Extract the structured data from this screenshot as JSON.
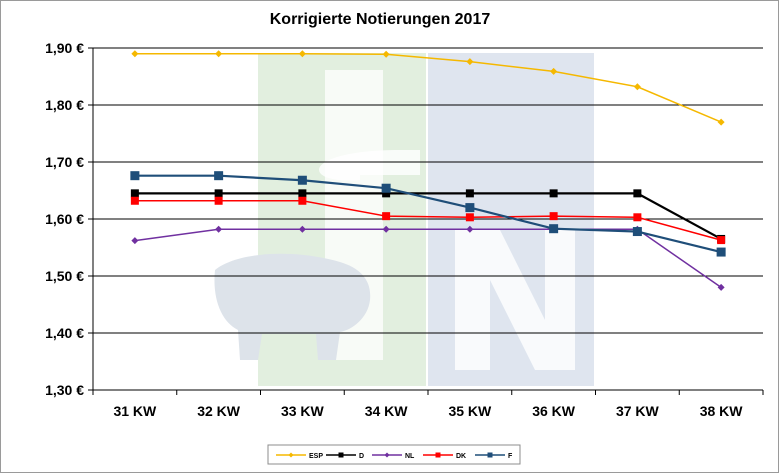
{
  "chart_data": {
    "type": "line",
    "title": "Korrigierte Notierungen 2017",
    "categories": [
      "31 KW",
      "32 KW",
      "33 KW",
      "34 KW",
      "35 KW",
      "36 KW",
      "37 KW",
      "38 KW"
    ],
    "ylim": [
      1.3,
      1.9
    ],
    "yticks": [
      1.3,
      1.4,
      1.5,
      1.6,
      1.7,
      1.8,
      1.9
    ],
    "ytick_labels": [
      "1,30 €",
      "1,40 €",
      "1,50 €",
      "1,60 €",
      "1,70 €",
      "1,80 €",
      "1,90 €"
    ],
    "grid": true,
    "legend_position": "bottom",
    "series": [
      {
        "name": "ESP",
        "color": "#f5b800",
        "marker": "diamond",
        "values": [
          1.89,
          1.89,
          1.89,
          1.889,
          1.876,
          1.859,
          1.832,
          1.77
        ]
      },
      {
        "name": "D",
        "color": "#000000",
        "marker": "square",
        "values": [
          1.645,
          1.645,
          1.645,
          1.645,
          1.645,
          1.645,
          1.645,
          1.565
        ]
      },
      {
        "name": "NL",
        "color": "#7030a0",
        "marker": "diamond",
        "values": [
          1.562,
          1.582,
          1.582,
          1.582,
          1.582,
          1.582,
          1.582,
          1.48
        ]
      },
      {
        "name": "DK",
        "color": "#ff0000",
        "marker": "square",
        "values": [
          1.632,
          1.632,
          1.632,
          1.605,
          1.603,
          1.605,
          1.603,
          1.563
        ]
      },
      {
        "name": "F",
        "color": "#1f4e79",
        "marker": "square",
        "values": [
          1.676,
          1.676,
          1.668,
          1.654,
          1.62,
          1.583,
          1.578,
          1.542
        ]
      }
    ]
  }
}
